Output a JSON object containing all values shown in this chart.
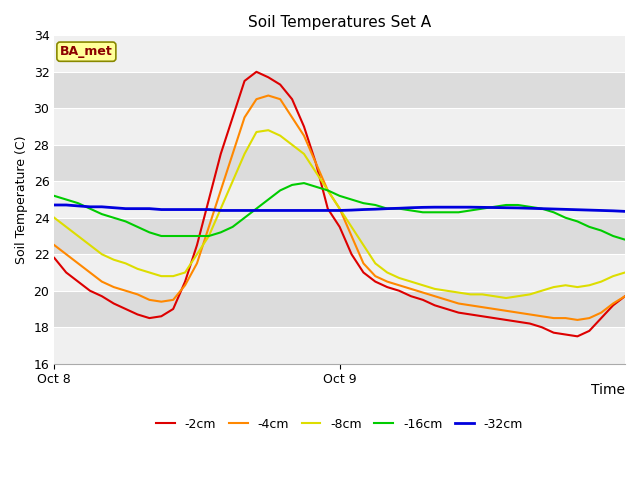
{
  "title": "Soil Temperatures Set A",
  "xlabel": "Time",
  "ylabel": "Soil Temperature (C)",
  "ylim": [
    16,
    34
  ],
  "yticks": [
    16,
    18,
    20,
    22,
    24,
    26,
    28,
    30,
    32,
    34
  ],
  "xtick_labels": [
    "Oct 8",
    "Oct 9"
  ],
  "xtick_positions": [
    0,
    24
  ],
  "xlim": [
    0,
    48
  ],
  "bg_color": "#e8e8e8",
  "band_color_light": "#f0f0f0",
  "band_color_dark": "#dcdcdc",
  "legend_label": "BA_met",
  "legend_box_color": "#ffff99",
  "legend_box_edge": "#888800",
  "legend_text_color": "#8b0000",
  "series_keys": [
    "-2cm",
    "-4cm",
    "-8cm",
    "-16cm",
    "-32cm"
  ],
  "series": {
    "-2cm": {
      "color": "#dd0000",
      "lw": 1.5
    },
    "-4cm": {
      "color": "#ff8800",
      "lw": 1.5
    },
    "-8cm": {
      "color": "#dddd00",
      "lw": 1.5
    },
    "-16cm": {
      "color": "#00cc00",
      "lw": 1.5
    },
    "-32cm": {
      "color": "#0000dd",
      "lw": 2.0
    }
  },
  "time_hours": [
    0,
    1,
    2,
    3,
    4,
    5,
    6,
    7,
    8,
    9,
    10,
    11,
    12,
    13,
    14,
    15,
    16,
    17,
    18,
    19,
    20,
    21,
    22,
    23,
    24,
    25,
    26,
    27,
    28,
    29,
    30,
    31,
    32,
    33,
    34,
    35,
    36,
    37,
    38,
    39,
    40,
    41,
    42,
    43,
    44,
    45,
    46,
    47,
    48
  ],
  "data_2cm": [
    21.8,
    21.0,
    20.5,
    20.0,
    19.7,
    19.3,
    19.0,
    18.7,
    18.5,
    18.6,
    19.0,
    20.5,
    22.5,
    25.0,
    27.5,
    29.5,
    31.5,
    32.0,
    31.7,
    31.3,
    30.5,
    29.0,
    27.0,
    24.5,
    23.5,
    22.0,
    21.0,
    20.5,
    20.2,
    20.0,
    19.7,
    19.5,
    19.2,
    19.0,
    18.8,
    18.7,
    18.6,
    18.5,
    18.4,
    18.3,
    18.2,
    18.0,
    17.7,
    17.6,
    17.5,
    17.8,
    18.5,
    19.2,
    19.7
  ],
  "data_4cm": [
    22.5,
    22.0,
    21.5,
    21.0,
    20.5,
    20.2,
    20.0,
    19.8,
    19.5,
    19.4,
    19.5,
    20.3,
    21.5,
    23.5,
    25.5,
    27.5,
    29.5,
    30.5,
    30.7,
    30.5,
    29.5,
    28.5,
    27.0,
    25.5,
    24.5,
    23.0,
    21.5,
    20.8,
    20.5,
    20.3,
    20.1,
    19.9,
    19.7,
    19.5,
    19.3,
    19.2,
    19.1,
    19.0,
    18.9,
    18.8,
    18.7,
    18.6,
    18.5,
    18.5,
    18.4,
    18.5,
    18.8,
    19.3,
    19.7
  ],
  "data_8cm": [
    24.0,
    23.5,
    23.0,
    22.5,
    22.0,
    21.7,
    21.5,
    21.2,
    21.0,
    20.8,
    20.8,
    21.0,
    22.0,
    23.0,
    24.5,
    26.0,
    27.5,
    28.7,
    28.8,
    28.5,
    28.0,
    27.5,
    26.5,
    25.5,
    24.5,
    23.5,
    22.5,
    21.5,
    21.0,
    20.7,
    20.5,
    20.3,
    20.1,
    20.0,
    19.9,
    19.8,
    19.8,
    19.7,
    19.6,
    19.7,
    19.8,
    20.0,
    20.2,
    20.3,
    20.2,
    20.3,
    20.5,
    20.8,
    21.0
  ],
  "data_16cm": [
    25.2,
    25.0,
    24.8,
    24.5,
    24.2,
    24.0,
    23.8,
    23.5,
    23.2,
    23.0,
    23.0,
    23.0,
    23.0,
    23.0,
    23.2,
    23.5,
    24.0,
    24.5,
    25.0,
    25.5,
    25.8,
    25.9,
    25.7,
    25.5,
    25.2,
    25.0,
    24.8,
    24.7,
    24.5,
    24.5,
    24.4,
    24.3,
    24.3,
    24.3,
    24.3,
    24.4,
    24.5,
    24.6,
    24.7,
    24.7,
    24.6,
    24.5,
    24.3,
    24.0,
    23.8,
    23.5,
    23.3,
    23.0,
    22.8
  ],
  "data_32cm": [
    24.7,
    24.7,
    24.65,
    24.6,
    24.6,
    24.55,
    24.5,
    24.5,
    24.5,
    24.45,
    24.45,
    24.45,
    24.45,
    24.45,
    24.4,
    24.4,
    24.4,
    24.4,
    24.4,
    24.4,
    24.4,
    24.4,
    24.4,
    24.4,
    24.4,
    24.42,
    24.45,
    24.47,
    24.5,
    24.52,
    24.55,
    24.57,
    24.58,
    24.58,
    24.58,
    24.58,
    24.57,
    24.56,
    24.55,
    24.54,
    24.52,
    24.5,
    24.48,
    24.46,
    24.44,
    24.42,
    24.4,
    24.38,
    24.35
  ]
}
